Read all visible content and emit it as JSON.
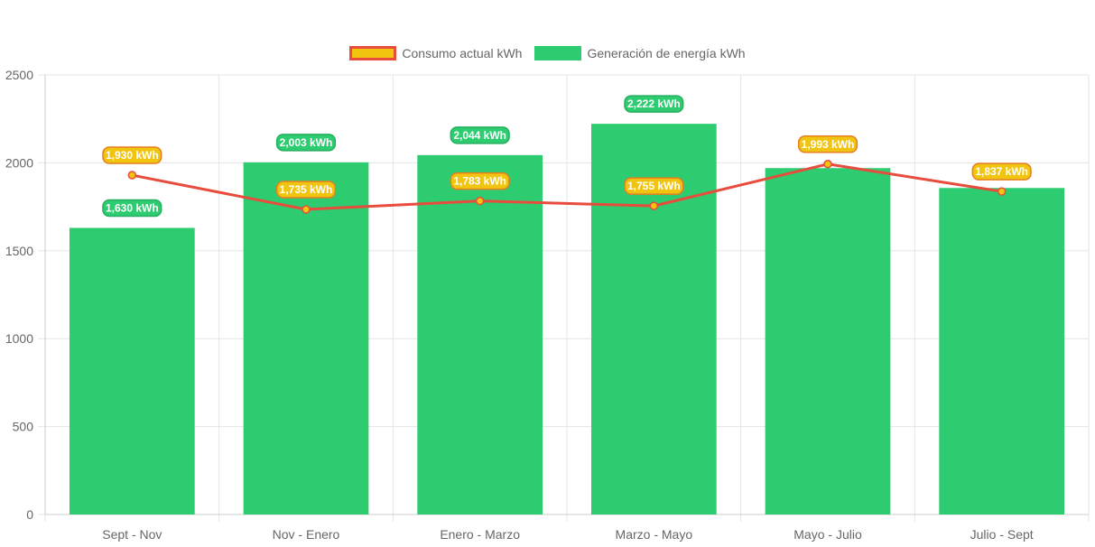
{
  "chart_data": {
    "type": "bar",
    "categories": [
      "Sept - Nov",
      "Nov - Enero",
      "Enero - Marzo",
      "Marzo - Mayo",
      "Mayo - Julio",
      "Julio - Sept"
    ],
    "series": [
      {
        "name": "Consumo actual kWh",
        "kind": "line",
        "values": [
          1930,
          1735,
          1783,
          1755,
          1993,
          1837
        ],
        "labels": [
          "1,930 kWh",
          "1,735 kWh",
          "1,783 kWh",
          "1,755 kWh",
          "1,993 kWh",
          "1,837 kWh"
        ],
        "line_color": "#e74c3c",
        "fill_color": "#f1c40f"
      },
      {
        "name": "Generación de energía kWh",
        "kind": "bar",
        "values": [
          1630,
          2003,
          2044,
          2222,
          1970,
          1857
        ],
        "labels": [
          "1,630 kWh",
          "2,003 kWh",
          "2,044 kWh",
          "2,222 kWh",
          "",
          ""
        ],
        "color": "#2ecc71"
      }
    ],
    "ylim": [
      0,
      2500
    ],
    "yticks": [
      "0",
      "500",
      "1000",
      "1500",
      "2000",
      "2500"
    ],
    "ytick_values": [
      0,
      500,
      1000,
      1500,
      2000,
      2500
    ],
    "grid": true,
    "legend_position": "top"
  }
}
